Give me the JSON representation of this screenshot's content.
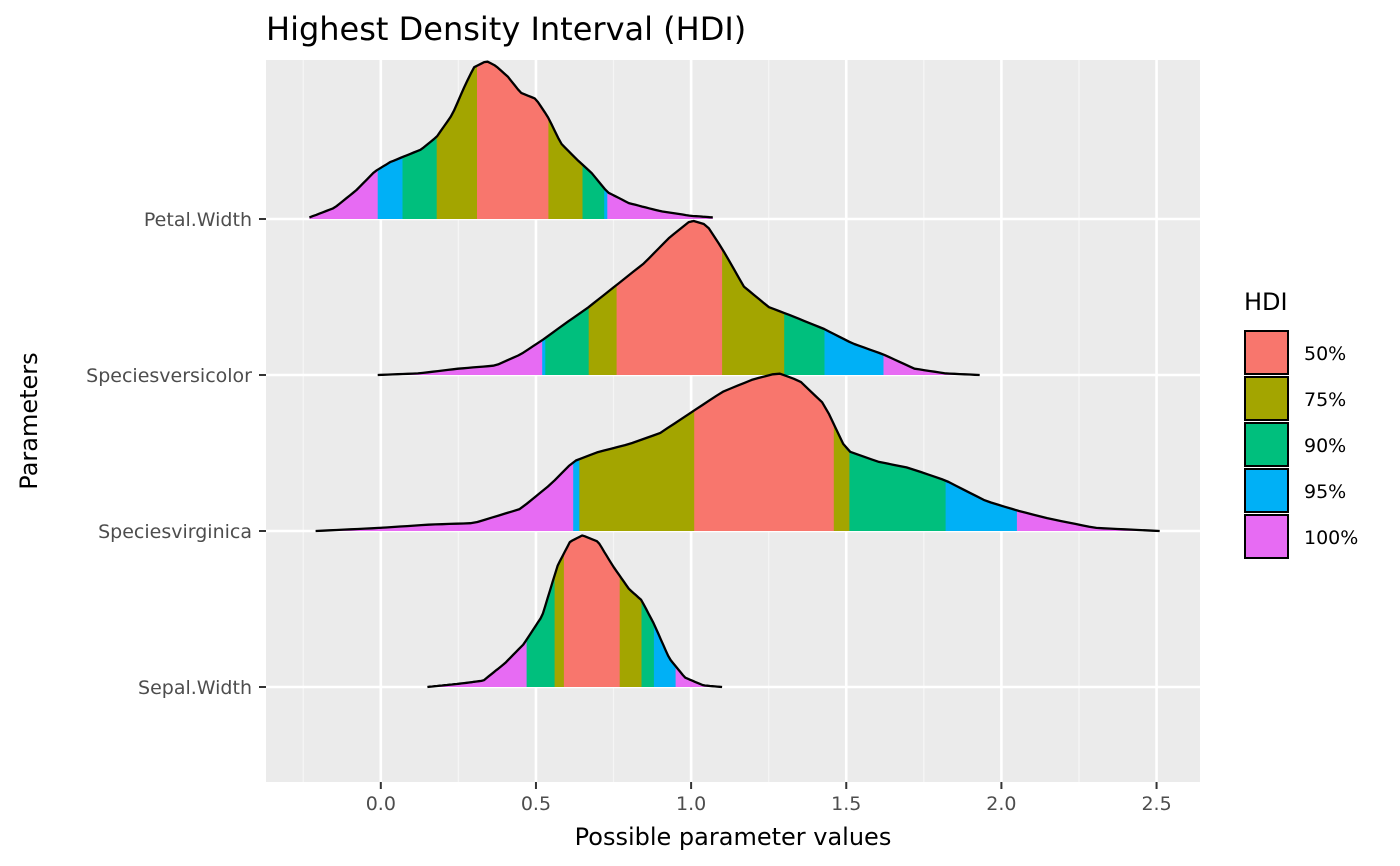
{
  "chart_data": {
    "type": "density-ridgeline",
    "title": "Highest Density Interval (HDI)",
    "xlabel": "Possible parameter values",
    "ylabel": "Parameters",
    "xlim": [
      -0.37,
      2.64
    ],
    "x_ticks": [
      0.0,
      0.5,
      1.0,
      1.5,
      2.0,
      2.5
    ],
    "x_tick_labels": [
      "0.0",
      "0.5",
      "1.0",
      "1.5",
      "2.0",
      "2.5"
    ],
    "grid": true,
    "legend": {
      "title": "HDI",
      "position": "right",
      "entries": [
        {
          "label": "50%",
          "color": "#F8766D"
        },
        {
          "label": "75%",
          "color": "#A3A500"
        },
        {
          "label": "90%",
          "color": "#00BF7D"
        },
        {
          "label": "95%",
          "color": "#00B0F6"
        },
        {
          "label": "100%",
          "color": "#E76BF3"
        }
      ]
    },
    "series": [
      {
        "name": "Petal.Width",
        "x": [
          -0.23,
          -0.15,
          -0.08,
          -0.02,
          0.03,
          0.08,
          0.13,
          0.18,
          0.23,
          0.27,
          0.3,
          0.34,
          0.37,
          0.41,
          0.45,
          0.5,
          0.54,
          0.58,
          0.63,
          0.68,
          0.73,
          0.8,
          0.9,
          1.0,
          1.07
        ],
        "y": [
          0.01,
          0.07,
          0.18,
          0.3,
          0.36,
          0.4,
          0.44,
          0.52,
          0.66,
          0.84,
          0.96,
          1.0,
          0.97,
          0.9,
          0.8,
          0.76,
          0.64,
          0.48,
          0.38,
          0.29,
          0.17,
          0.1,
          0.05,
          0.02,
          0.01
        ],
        "intervals": {
          "50%": [
            0.31,
            0.54
          ],
          "75%": [
            0.18,
            0.65
          ],
          "90%": [
            0.07,
            0.72
          ],
          "95%": [
            -0.01,
            0.73
          ],
          "100%": [
            -0.23,
            1.07
          ]
        }
      },
      {
        "name": "Speciesversicolor",
        "x": [
          -0.01,
          0.12,
          0.25,
          0.37,
          0.45,
          0.52,
          0.59,
          0.67,
          0.76,
          0.85,
          0.93,
          1.0,
          1.05,
          1.1,
          1.17,
          1.25,
          1.33,
          1.43,
          1.52,
          1.62,
          1.72,
          1.82,
          1.93
        ],
        "y": [
          0.0,
          0.01,
          0.04,
          0.06,
          0.13,
          0.22,
          0.32,
          0.43,
          0.57,
          0.71,
          0.87,
          0.98,
          0.95,
          0.8,
          0.56,
          0.43,
          0.37,
          0.29,
          0.2,
          0.13,
          0.04,
          0.01,
          0.0
        ],
        "intervals": {
          "50%": [
            0.76,
            1.1
          ],
          "75%": [
            0.67,
            1.3
          ],
          "90%": [
            0.53,
            1.43
          ],
          "95%": [
            0.52,
            1.62
          ],
          "100%": [
            -0.01,
            1.93
          ]
        }
      },
      {
        "name": "Speciesvirginica",
        "x": [
          -0.21,
          0.0,
          0.15,
          0.3,
          0.45,
          0.55,
          0.62,
          0.7,
          0.8,
          0.9,
          1.0,
          1.1,
          1.2,
          1.28,
          1.35,
          1.43,
          1.5,
          1.6,
          1.7,
          1.82,
          1.95,
          2.05,
          2.15,
          2.3,
          2.51
        ],
        "y": [
          0.0,
          0.02,
          0.04,
          0.05,
          0.14,
          0.3,
          0.44,
          0.5,
          0.55,
          0.62,
          0.75,
          0.88,
          0.96,
          1.0,
          0.95,
          0.8,
          0.51,
          0.44,
          0.4,
          0.32,
          0.19,
          0.13,
          0.08,
          0.02,
          0.0
        ],
        "intervals": {
          "50%": [
            1.01,
            1.46
          ],
          "75%": [
            0.64,
            1.51
          ],
          "90%": [
            0.64,
            1.82
          ],
          "95%": [
            0.62,
            2.05
          ],
          "100%": [
            -0.21,
            2.51
          ]
        }
      },
      {
        "name": "Sepal.Width",
        "x": [
          0.15,
          0.25,
          0.33,
          0.4,
          0.46,
          0.52,
          0.57,
          0.61,
          0.65,
          0.7,
          0.75,
          0.8,
          0.84,
          0.88,
          0.93,
          0.98,
          1.04,
          1.1
        ],
        "y": [
          0.0,
          0.02,
          0.04,
          0.15,
          0.27,
          0.45,
          0.77,
          0.92,
          0.96,
          0.92,
          0.76,
          0.62,
          0.55,
          0.4,
          0.18,
          0.06,
          0.01,
          0.0
        ],
        "intervals": {
          "50%": [
            0.59,
            0.77
          ],
          "75%": [
            0.56,
            0.84
          ],
          "90%": [
            0.47,
            0.88
          ],
          "95%": [
            0.47,
            0.95
          ],
          "100%": [
            0.15,
            1.1
          ]
        }
      }
    ]
  }
}
